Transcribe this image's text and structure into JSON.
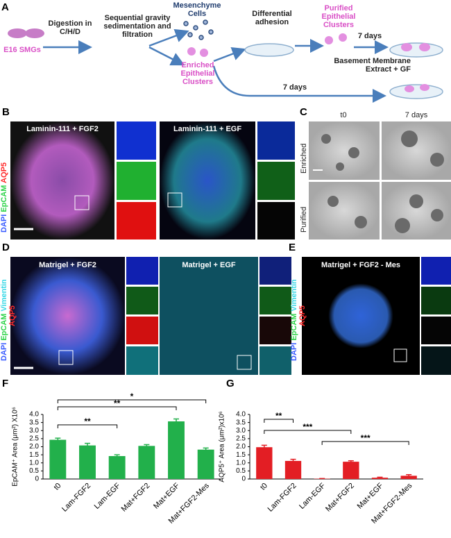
{
  "panel_a": {
    "label": "A",
    "source": "E16 SMGs",
    "step1": "Digestion in C/H/D",
    "step2": "Sequential gravity sedimentation and filtration",
    "mesenchyme": "Mesenchyme Cells",
    "enriched": "Enriched Epithelial Clusters",
    "step3": "Differential adhesion",
    "purified": "Purified Epithelial Clusters",
    "days_top": "7 days",
    "culture": "Basement Membrane Extract + GF",
    "days_bottom": "7 days"
  },
  "panel_b": {
    "label": "B",
    "stains": [
      "DAPI",
      "EpCAM",
      "AQP5"
    ],
    "conditions": [
      "Laminin-111 + FGF2",
      "Laminin-111 + EGF"
    ]
  },
  "panel_c": {
    "label": "C",
    "columns": [
      "t0",
      "7 days"
    ],
    "rows": [
      "Enriched",
      "Purified"
    ]
  },
  "panel_d": {
    "label": "D",
    "stains": [
      "DAPI",
      "EpCAM",
      "Vimentin",
      "AQP5"
    ],
    "conditions": [
      "Matrigel + FGF2",
      "Matrigel + EGF"
    ]
  },
  "panel_e": {
    "label": "E",
    "stains": [
      "DAPI",
      "EpCAM",
      "Vimentin",
      "AQP5"
    ],
    "condition": "Matrigel + FGF2 - Mes"
  },
  "chart_data": [
    {
      "type": "bar",
      "panel_label": "F",
      "y_label": "EpCAM⁺ Area (μm²) X10⁶",
      "categories": [
        "t0",
        "Lam-FGF2",
        "Lam-EGF",
        "Mat+FGF2",
        "Mat+EGF",
        "Mat+FGF2-Mes"
      ],
      "series": [
        {
          "color": "#22b04b",
          "values": [
            2.43,
            2.08,
            1.42,
            2.05,
            3.57,
            1.82
          ],
          "errors": [
            0.1,
            0.13,
            0.08,
            0.08,
            0.15,
            0.1
          ]
        }
      ],
      "ylim": [
        0,
        4
      ],
      "yticks": [
        0,
        0.5,
        {
          "value": 1,
          "label": "1.0"
        },
        1.5,
        {
          "value": 2,
          "label": "2.0"
        },
        2.5,
        {
          "value": 3,
          "label": "3.0"
        },
        3.5,
        {
          "value": 4,
          "label": "4.0"
        }
      ],
      "significance": [
        "*",
        "**",
        "**"
      ]
    },
    {
      "type": "bar",
      "panel_label": "G",
      "y_label": "AQP5⁺ Area (μm²)x10⁶",
      "categories": [
        "t0",
        "Lam-FGF2",
        "Lam-EGF",
        "Mat+FGF2",
        "Mat+EGF",
        "Mat+FGF2-Mes"
      ],
      "series": [
        {
          "color": "#e31e24",
          "values": [
            1.97,
            1.12,
            0.02,
            1.07,
            0.08,
            0.2
          ],
          "errors": [
            0.12,
            0.1,
            0.01,
            0.06,
            0.03,
            0.07
          ]
        }
      ],
      "ylim": [
        0,
        4
      ],
      "yticks": [
        0,
        0.5,
        {
          "value": 1,
          "label": "1.0"
        },
        1.5,
        {
          "value": 2,
          "label": "2.0"
        },
        2.5,
        {
          "value": 3,
          "label": "3.0"
        },
        3.5,
        {
          "value": 4,
          "label": "4.0"
        }
      ],
      "significance": [
        "**",
        "***",
        "***"
      ]
    }
  ]
}
